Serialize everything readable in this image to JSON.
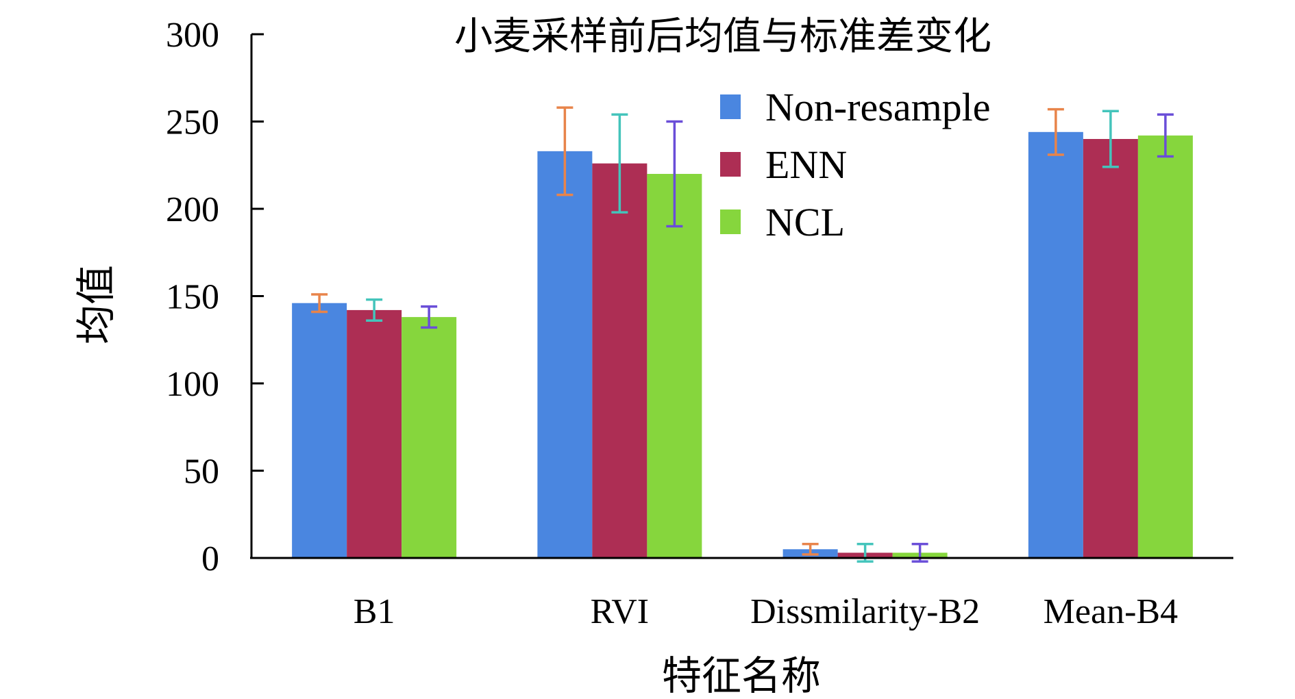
{
  "chart_data": {
    "type": "bar",
    "title": "小麦采样前后均值与标准差变化",
    "xlabel": "特征名称",
    "ylabel": "均值",
    "ylim": [
      0,
      300
    ],
    "yticks": [
      0,
      50,
      100,
      150,
      200,
      250,
      300
    ],
    "grid": false,
    "legend_position": "top-center",
    "categories": [
      "B1",
      "RVI",
      "Dissmilarity-B2",
      "Mean-B4"
    ],
    "series": [
      {
        "name": "Non-resample",
        "color": "#4a86e0",
        "error_color": "#e8844a",
        "values": [
          146,
          233,
          5,
          244
        ],
        "errors": [
          5,
          25,
          3,
          13
        ]
      },
      {
        "name": "ENN",
        "color": "#ad2e54",
        "error_color": "#44c4bb",
        "values": [
          142,
          226,
          3,
          240
        ],
        "errors": [
          6,
          28,
          5,
          16
        ]
      },
      {
        "name": "NCL",
        "color": "#86d63d",
        "error_color": "#6a4ed8",
        "values": [
          138,
          220,
          3,
          242
        ],
        "errors": [
          6,
          30,
          5,
          12
        ]
      }
    ]
  }
}
